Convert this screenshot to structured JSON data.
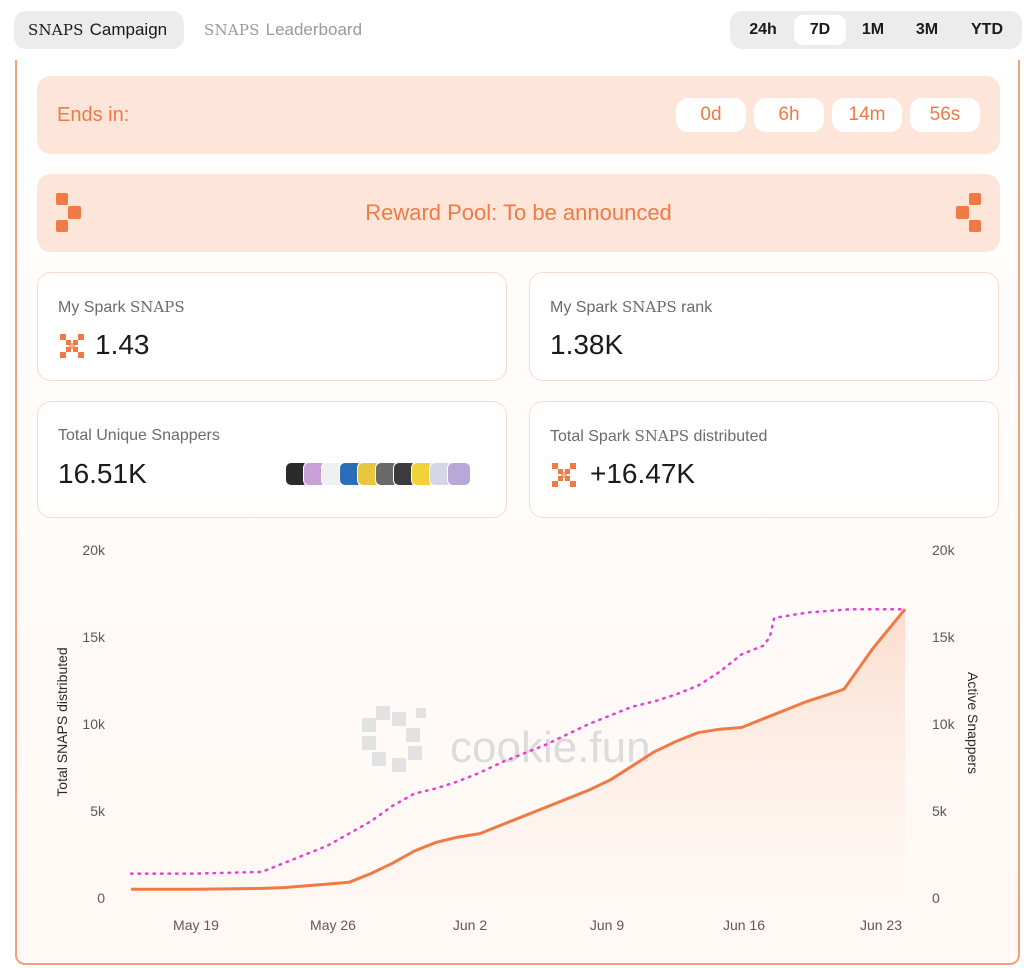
{
  "header": {
    "tabs": [
      {
        "brand": "SNAPS",
        "label": "Campaign",
        "active": true
      },
      {
        "brand": "SNAPS",
        "label": "Leaderboard",
        "active": false
      }
    ],
    "ranges": [
      "24h",
      "7D",
      "1M",
      "3M",
      "YTD"
    ],
    "selected_range": "7D"
  },
  "countdown": {
    "label": "Ends in:",
    "values": [
      "0d",
      "6h",
      "14m",
      "56s"
    ]
  },
  "reward": {
    "text": "Reward Pool: To be announced"
  },
  "stats": {
    "my_snaps": {
      "label_pre": "My Spark ",
      "label_brand": "SNAPS",
      "label_post": "",
      "value": "1.43"
    },
    "my_rank": {
      "label_pre": "My Spark ",
      "label_brand": "SNAPS",
      "label_post": " rank",
      "value": "1.38K"
    },
    "unique": {
      "label_pre": "Total Unique Snappers",
      "label_brand": "",
      "label_post": "",
      "value": "16.51K"
    },
    "distributed": {
      "label_pre": "Total Spark ",
      "label_brand": "SNAPS",
      "label_post": " distributed",
      "value": "+16.47K"
    }
  },
  "avatar_colors": [
    "#2b2b2b",
    "#c9a0d8",
    "#f0f0f0",
    "#2a6fb8",
    "#e8c640",
    "#6a6a6a",
    "#3b3b3b",
    "#f2d23a",
    "#d6d6e6",
    "#b8a8d8"
  ],
  "watermark": "cookie.fun",
  "colors": {
    "accent": "#ef7a45",
    "dots": "#e63fd2",
    "card_bg": "#fde5d9"
  },
  "chart_data": {
    "type": "line",
    "x_ticks": [
      "May 19",
      "May 26",
      "Jun 2",
      "Jun 9",
      "Jun 16",
      "Jun 23"
    ],
    "ylabel_left": "Total SNAPS distributed",
    "ylabel_right": "Active Snappers",
    "y_ticks_left": [
      "0",
      "5k",
      "10k",
      "15k",
      "20k"
    ],
    "y_ticks_right": [
      "0",
      "5k",
      "10k",
      "15k",
      "20k"
    ],
    "ylim": [
      0,
      20000
    ],
    "x_day_range": [
      -3,
      25
    ],
    "series": [
      {
        "style": "solid",
        "color": "#ef7a45",
        "points": [
          [
            -3,
            500
          ],
          [
            0,
            500
          ],
          [
            3,
            550
          ],
          [
            4,
            600
          ],
          [
            6,
            800
          ],
          [
            7,
            900
          ],
          [
            8,
            1400
          ],
          [
            9,
            2000
          ],
          [
            10,
            2700
          ],
          [
            11,
            3200
          ],
          [
            12,
            3500
          ],
          [
            13,
            3700
          ],
          [
            14,
            4200
          ],
          [
            15,
            4700
          ],
          [
            16,
            5200
          ],
          [
            17,
            5700
          ],
          [
            18,
            6200
          ],
          [
            19,
            6800
          ],
          [
            20,
            7600
          ],
          [
            21,
            8400
          ],
          [
            22,
            9000
          ],
          [
            23,
            9500
          ],
          [
            24,
            9700
          ],
          [
            25,
            9800
          ],
          [
            26,
            10300
          ],
          [
            27,
            10800
          ],
          [
            28,
            11300
          ],
          [
            29,
            11700
          ],
          [
            29.7,
            12000
          ],
          [
            31,
            14300
          ],
          [
            32.5,
            16600
          ]
        ]
      },
      {
        "style": "dotted",
        "color": "#e63fd2",
        "points": [
          [
            -3,
            1400
          ],
          [
            0,
            1400
          ],
          [
            3,
            1500
          ],
          [
            4,
            2000
          ],
          [
            5,
            2500
          ],
          [
            6,
            3000
          ],
          [
            7,
            3700
          ],
          [
            8,
            4400
          ],
          [
            9,
            5300
          ],
          [
            10,
            6000
          ],
          [
            11,
            6300
          ],
          [
            12,
            6700
          ],
          [
            13,
            7200
          ],
          [
            14,
            7800
          ],
          [
            15,
            8300
          ],
          [
            16,
            8800
          ],
          [
            17,
            9400
          ],
          [
            18,
            10000
          ],
          [
            19,
            10500
          ],
          [
            20,
            11000
          ],
          [
            21,
            11300
          ],
          [
            22,
            11700
          ],
          [
            23,
            12200
          ],
          [
            24,
            13000
          ],
          [
            25,
            14000
          ],
          [
            26,
            14500
          ],
          [
            26.3,
            15000
          ],
          [
            26.5,
            16100
          ],
          [
            28,
            16400
          ],
          [
            30,
            16600
          ],
          [
            32.5,
            16600
          ]
        ]
      }
    ]
  }
}
